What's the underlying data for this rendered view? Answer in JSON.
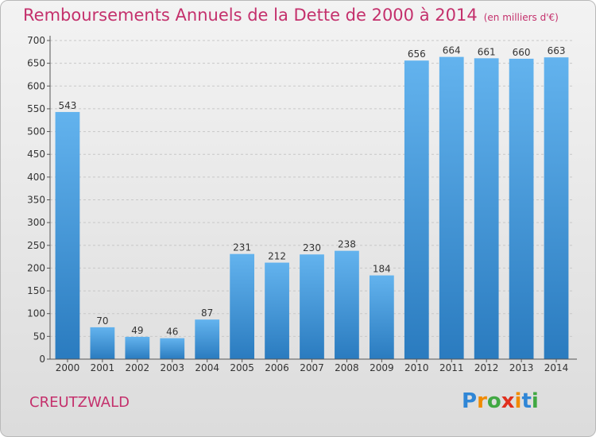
{
  "title": "Remboursements Annuels de la Dette de 2000 à 2014",
  "unit": "(en milliers d'€)",
  "city": "CREUTZWALD",
  "brand": "Proxiti",
  "colors": {
    "title": "#c4306c",
    "bar_light": "#63b3ee",
    "bar_dark": "#2a7bbf",
    "axis": "#555555"
  },
  "chart_data": {
    "type": "bar",
    "title": "Remboursements Annuels de la Dette de 2000 à 2014",
    "subtitle": "(en milliers d'€)",
    "xlabel": "",
    "ylabel": "",
    "categories": [
      "2000",
      "2001",
      "2002",
      "2003",
      "2004",
      "2005",
      "2006",
      "2007",
      "2008",
      "2009",
      "2010",
      "2011",
      "2012",
      "2013",
      "2014"
    ],
    "values": [
      543,
      70,
      49,
      46,
      87,
      231,
      212,
      230,
      238,
      184,
      656,
      664,
      661,
      660,
      663
    ],
    "ylim": [
      0,
      700
    ],
    "yticks": [
      0,
      50,
      100,
      150,
      200,
      250,
      300,
      350,
      400,
      450,
      500,
      550,
      600,
      650,
      700
    ],
    "grid": true
  }
}
